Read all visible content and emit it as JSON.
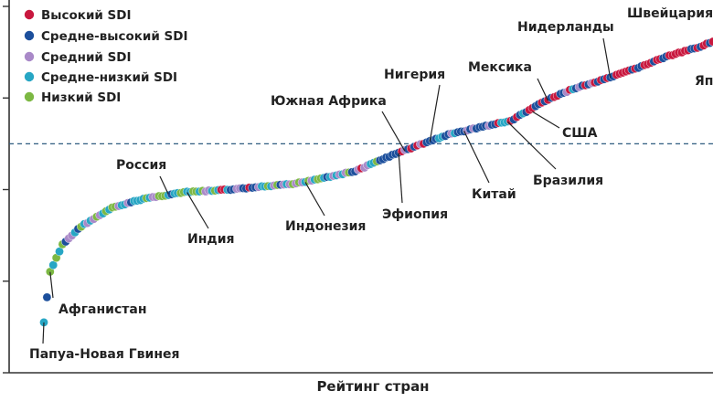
{
  "chart_data": {
    "type": "scatter",
    "xlabel": "Рейтинг стран",
    "ylabel": "",
    "xlim": [
      0,
      215
    ],
    "ylim": [
      0,
      4
    ],
    "yticks": [
      0,
      1,
      2,
      3,
      4
    ],
    "reference_line_y": 2.5,
    "legend_position": "top-left",
    "legend": [
      {
        "name": "Высокий SDI",
        "color": "#c8173e"
      },
      {
        "name": "Средне-высокий SDI",
        "color": "#1c4f9c"
      },
      {
        "name": "Средний SDI",
        "color": "#a989c8"
      },
      {
        "name": "Средне-низкий SDI",
        "color": "#27a6c4"
      },
      {
        "name": "Низкий SDI",
        "color": "#7cb843"
      }
    ],
    "curve": [
      [
        0,
        0.55
      ],
      [
        2,
        1.1
      ],
      [
        6,
        1.4
      ],
      [
        12,
        1.6
      ],
      [
        22,
        1.8
      ],
      [
        32,
        1.9
      ],
      [
        45,
        1.97
      ],
      [
        60,
        2.0
      ],
      [
        80,
        2.06
      ],
      [
        100,
        2.2
      ],
      [
        110,
        2.35
      ],
      [
        120,
        2.48
      ],
      [
        130,
        2.6
      ],
      [
        140,
        2.68
      ],
      [
        150,
        2.75
      ],
      [
        160,
        2.95
      ],
      [
        170,
        3.1
      ],
      [
        180,
        3.2
      ],
      [
        190,
        3.32
      ],
      [
        200,
        3.45
      ],
      [
        210,
        3.55
      ],
      [
        215,
        3.62
      ]
    ],
    "annotations": [
      {
        "text": "Папуа-Новая Гвинея",
        "x": 0,
        "y": 0.55
      },
      {
        "text": "Афганистан",
        "x": 2,
        "y": 1.1
      },
      {
        "text": "Россия",
        "x": 40,
        "y": 1.95
      },
      {
        "text": "Индия",
        "x": 46,
        "y": 1.97
      },
      {
        "text": "Индонезия",
        "x": 84,
        "y": 2.08
      },
      {
        "text": "Южная Африка",
        "x": 116,
        "y": 2.42
      },
      {
        "text": "Эфиопия",
        "x": 114,
        "y": 2.4
      },
      {
        "text": "Нигерия",
        "x": 124,
        "y": 2.52
      },
      {
        "text": "Китай",
        "x": 135,
        "y": 2.64
      },
      {
        "text": "Бразилия",
        "x": 149,
        "y": 2.74
      },
      {
        "text": "Мексика",
        "x": 162,
        "y": 2.97
      },
      {
        "text": "США",
        "x": 157,
        "y": 2.85
      },
      {
        "text": "Нидерланды",
        "x": 182,
        "y": 3.22
      },
      {
        "text": "Швейцария",
        "x": 200,
        "y": 3.45
      },
      {
        "text": "Яп",
        "x": 212,
        "y": 3.58
      }
    ]
  }
}
